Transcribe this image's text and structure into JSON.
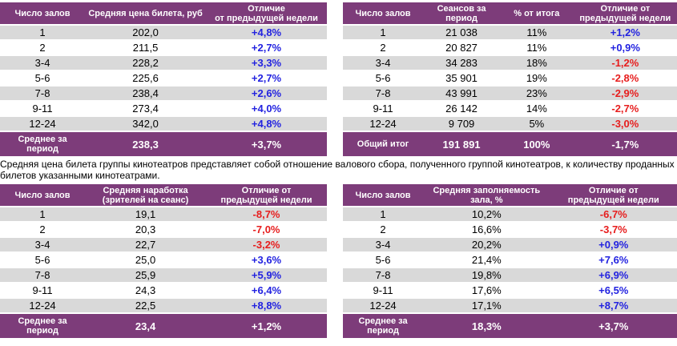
{
  "colors": {
    "header_bg": "#7D3C7A",
    "row_alt_bg": "#D9D9D9",
    "positive": "#2323E0",
    "negative": "#E71D1D",
    "header_text": "#FFFFFF",
    "body_text": "#000000"
  },
  "note": "Средняя цена билета группы кинотеатров представляет собой отношение валового сбора, полученного группой кинотеатров, к количеству проданных билетов указанными кинотеатрами.",
  "tables": {
    "avg_ticket_price": {
      "headers": [
        "Число залов",
        "Средняя цена билета, руб",
        "Отличие\nот предыдущей недели"
      ],
      "diff_col": 2,
      "rows": [
        [
          "1",
          "202,0",
          "+4,8%"
        ],
        [
          "2",
          "211,5",
          "+2,7%"
        ],
        [
          "3-4",
          "228,2",
          "+3,3%"
        ],
        [
          "5-6",
          "225,6",
          "+2,7%"
        ],
        [
          "7-8",
          "238,4",
          "+2,6%"
        ],
        [
          "9-11",
          "273,4",
          "+4,0%"
        ],
        [
          "12-24",
          "342,0",
          "+4,8%"
        ]
      ],
      "footer": [
        "Среднее за\nпериод",
        "238,3",
        "+3,7%"
      ]
    },
    "sessions_per_period": {
      "headers": [
        "Число залов",
        "Сеансов за период",
        "% от итога",
        "Отличие от\nпредыдущей недели"
      ],
      "diff_col": 3,
      "rows": [
        [
          "1",
          "21 038",
          "11%",
          "+1,2%"
        ],
        [
          "2",
          "20 827",
          "11%",
          "+0,9%"
        ],
        [
          "3-4",
          "34 283",
          "18%",
          "-1,2%"
        ],
        [
          "5-6",
          "35 901",
          "19%",
          "-2,8%"
        ],
        [
          "7-8",
          "43 991",
          "23%",
          "-2,9%"
        ],
        [
          "9-11",
          "26 142",
          "14%",
          "-2,7%"
        ],
        [
          "12-24",
          "9 709",
          "5%",
          "-3,0%"
        ]
      ],
      "footer": [
        "Общий итог",
        "191 891",
        "100%",
        "-1,7%"
      ]
    },
    "avg_admissions_per_session": {
      "headers": [
        "Число залов",
        "Средняя наработка\n(зрителей на сеанс)",
        "Отличие от\nпредыдущей недели"
      ],
      "diff_col": 2,
      "rows": [
        [
          "1",
          "19,1",
          "-8,7%"
        ],
        [
          "2",
          "20,3",
          "-7,0%"
        ],
        [
          "3-4",
          "22,7",
          "-3,2%"
        ],
        [
          "5-6",
          "25,0",
          "+3,6%"
        ],
        [
          "7-8",
          "25,9",
          "+5,9%"
        ],
        [
          "9-11",
          "24,3",
          "+6,4%"
        ],
        [
          "12-24",
          "22,5",
          "+8,8%"
        ]
      ],
      "footer": [
        "Среднее за\nпериод",
        "23,4",
        "+1,2%"
      ]
    },
    "avg_occupancy": {
      "headers": [
        "Число залов",
        "Средняя заполняемость\nзала, %",
        "Отличие от\nпредыдущей недели"
      ],
      "diff_col": 2,
      "rows": [
        [
          "1",
          "10,2%",
          "-6,7%"
        ],
        [
          "2",
          "16,6%",
          "-3,7%"
        ],
        [
          "3-4",
          "20,2%",
          "+0,9%"
        ],
        [
          "5-6",
          "21,4%",
          "+7,6%"
        ],
        [
          "7-8",
          "19,8%",
          "+6,9%"
        ],
        [
          "9-11",
          "17,6%",
          "+6,5%"
        ],
        [
          "12-24",
          "17,1%",
          "+8,7%"
        ]
      ],
      "footer": [
        "Среднее за\nпериод",
        "18,3%",
        "+3,7%"
      ]
    }
  }
}
